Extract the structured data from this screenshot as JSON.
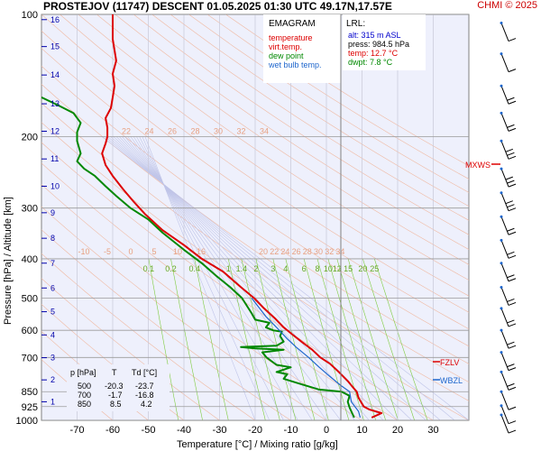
{
  "header": {
    "title": "PROSTEJOV (11747)   DESCENT   01.05.2025 01:30 UTC  49.17N,17.57E",
    "credit": "CHMI © 2025"
  },
  "legend": {
    "title": "EMAGRAM",
    "items": [
      {
        "label": "temperature",
        "color": "#dd0000"
      },
      {
        "label": "virt.temp.",
        "color": "#dd0000"
      },
      {
        "label": "dew point",
        "color": "#008800"
      },
      {
        "label": "wet bulb temp.",
        "color": "#1e66cc"
      }
    ]
  },
  "lrl": {
    "title": "LRL:",
    "lines": [
      {
        "text": "alt: 315 m ASL",
        "color": "#0000cc"
      },
      {
        "text": "press: 984.5 hPa",
        "color": "#000000"
      },
      {
        "text": "temp: 12.7 °C",
        "color": "#dd0000"
      },
      {
        "text": "dwpt: 7.8 °C",
        "color": "#008800"
      }
    ]
  },
  "table": {
    "headers": [
      "p [hPa]",
      "T",
      "Td [°C]"
    ],
    "rows": [
      [
        "500",
        "-20.3",
        "-23.7"
      ],
      [
        "700",
        "-1.7",
        "-16.8"
      ],
      [
        "850",
        "8.5",
        "4.2"
      ]
    ]
  },
  "levels": {
    "mxws": "MXWS",
    "fzlv": "FZLV",
    "wbzl": "WBZL"
  },
  "chart_data": {
    "type": "line",
    "xlabel": "Temperature [°C]  /  Mixing ratio [g/kg]",
    "ylabel": "Pressure [hPa]  /  Altitude [km]",
    "xlim": [
      -80,
      40
    ],
    "ylim": [
      1000,
      100
    ],
    "yscale": "log",
    "x_ticks": [
      -70,
      -60,
      -50,
      -40,
      -30,
      -20,
      -10,
      0,
      10,
      20,
      30
    ],
    "pressure_ticks": [
      100,
      200,
      300,
      400,
      500,
      600,
      700,
      850,
      925,
      1000
    ],
    "altitude_ticks": [
      {
        "km": "1",
        "p": 900
      },
      {
        "km": "2",
        "p": 795
      },
      {
        "km": "3",
        "p": 701
      },
      {
        "km": "4",
        "p": 616
      },
      {
        "km": "5",
        "p": 540
      },
      {
        "km": "6",
        "p": 472
      },
      {
        "km": "7",
        "p": 410
      },
      {
        "km": "8",
        "p": 356
      },
      {
        "km": "9",
        "p": 308
      },
      {
        "km": "10",
        "p": 265
      },
      {
        "km": "11",
        "p": 227
      },
      {
        "km": "12",
        "p": 194
      },
      {
        "km": "13",
        "p": 166
      },
      {
        "km": "14",
        "p": 141
      },
      {
        "km": "15",
        "p": 120
      },
      {
        "km": "16",
        "p": 103
      }
    ],
    "mixing_ratio_labels": [
      "0.1",
      "0.2",
      "0.4",
      "1",
      "1.4",
      "2",
      "3",
      "4",
      "6",
      "8",
      "10",
      "12",
      "15",
      "20",
      "25"
    ],
    "dry_adiabat_labels_upper": [
      "22",
      "24",
      "26",
      "28",
      "30",
      "32",
      "34"
    ],
    "dry_adiabat_labels_lower": [
      "-10",
      "-5",
      "0",
      "5",
      "10",
      "16",
      "20",
      "22",
      "24",
      "26",
      "28",
      "30",
      "32",
      "34"
    ],
    "series": [
      {
        "name": "temperature",
        "color": "#dd0000",
        "points": [
          [
            12.7,
            984.5
          ],
          [
            15.5,
            960
          ],
          [
            12,
            940
          ],
          [
            10.5,
            925
          ],
          [
            9,
            880
          ],
          [
            8.5,
            850
          ],
          [
            7.5,
            830
          ],
          [
            6,
            800
          ],
          [
            3.5,
            760
          ],
          [
            1,
            725
          ],
          [
            -1.7,
            700
          ],
          [
            -4,
            670
          ],
          [
            -7,
            640
          ],
          [
            -10,
            610
          ],
          [
            -12,
            590
          ],
          [
            -14.5,
            560
          ],
          [
            -17.5,
            530
          ],
          [
            -20.3,
            500
          ],
          [
            -24,
            470
          ],
          [
            -29,
            430
          ],
          [
            -35,
            400
          ],
          [
            -40,
            370
          ],
          [
            -46,
            340
          ],
          [
            -51,
            310
          ],
          [
            -54,
            290
          ],
          [
            -57,
            270
          ],
          [
            -60,
            250
          ],
          [
            -62,
            235
          ],
          [
            -63,
            220
          ],
          [
            -62,
            208
          ],
          [
            -61.5,
            200
          ],
          [
            -61.5,
            190
          ],
          [
            -62,
            180
          ],
          [
            -60.5,
            170
          ],
          [
            -60,
            160
          ],
          [
            -59.5,
            150
          ],
          [
            -60,
            140
          ],
          [
            -59,
            130
          ],
          [
            -60,
            115
          ],
          [
            -60,
            100
          ]
        ]
      },
      {
        "name": "dew point",
        "color": "#008800",
        "points": [
          [
            7.8,
            984.5
          ],
          [
            7,
            950
          ],
          [
            6.5,
            930
          ],
          [
            6,
            900
          ],
          [
            6.5,
            870
          ],
          [
            4.2,
            850
          ],
          [
            -2,
            840
          ],
          [
            -8,
            810
          ],
          [
            -12,
            790
          ],
          [
            -11,
            770
          ],
          [
            -14,
            760
          ],
          [
            -10,
            740
          ],
          [
            -14,
            730
          ],
          [
            -16.8,
            700
          ],
          [
            -18,
            680
          ],
          [
            -12,
            670
          ],
          [
            -20,
            665
          ],
          [
            -24,
            660
          ],
          [
            -14,
            655
          ],
          [
            -12,
            640
          ],
          [
            -13,
            620
          ],
          [
            -12.5,
            605
          ],
          [
            -15,
            600
          ],
          [
            -17,
            590
          ],
          [
            -16,
            575
          ],
          [
            -20,
            565
          ],
          [
            -21,
            545
          ],
          [
            -23.7,
            500
          ],
          [
            -27,
            470
          ],
          [
            -31,
            440
          ],
          [
            -35,
            410
          ],
          [
            -40,
            380
          ],
          [
            -46,
            345
          ],
          [
            -50,
            320
          ],
          [
            -55,
            300
          ],
          [
            -59,
            280
          ],
          [
            -62,
            265
          ],
          [
            -65,
            250
          ],
          [
            -68,
            240
          ],
          [
            -70,
            230
          ],
          [
            -69,
            220
          ],
          [
            -70,
            205
          ],
          [
            -70,
            195
          ],
          [
            -69,
            185
          ],
          [
            -71,
            175
          ],
          [
            -75,
            168
          ],
          [
            -80,
            160
          ]
        ]
      },
      {
        "name": "wet bulb temp.",
        "color": "#1e66cc",
        "points": [
          [
            9.5,
            984.5
          ],
          [
            9,
            950
          ],
          [
            8,
            925
          ],
          [
            7,
            900
          ],
          [
            6.5,
            850
          ],
          [
            4,
            820
          ],
          [
            1,
            780
          ],
          [
            -2,
            740
          ],
          [
            -5,
            700
          ],
          [
            -8.5,
            660
          ],
          [
            -11,
            630
          ],
          [
            -14,
            590
          ],
          [
            -17,
            555
          ],
          [
            -21,
            500
          ]
        ]
      }
    ],
    "winds": {
      "symbol_color": "#000000",
      "levels_hpa": [
        105,
        125,
        150,
        175,
        205,
        240,
        275,
        315,
        360,
        410,
        470,
        530,
        600,
        680,
        760,
        850,
        920,
        970
      ],
      "speeds_kt": [
        10,
        10,
        15,
        15,
        30,
        25,
        25,
        20,
        15,
        15,
        15,
        20,
        20,
        15,
        20,
        10,
        10,
        10
      ]
    }
  }
}
